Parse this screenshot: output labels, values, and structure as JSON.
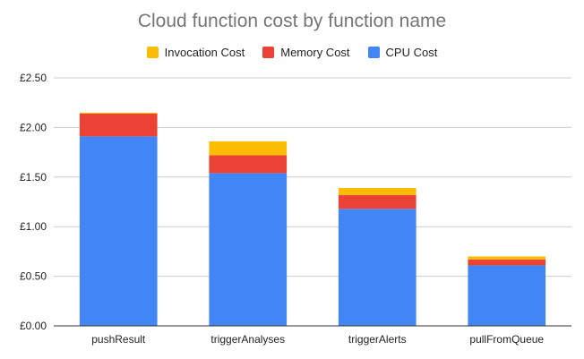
{
  "chart_data": {
    "type": "bar",
    "stacked": true,
    "title": "Cloud function cost by function name",
    "categories": [
      "pushResult",
      "triggerAnalyses",
      "triggerAlerts",
      "pullFromQueue"
    ],
    "series": [
      {
        "name": "CPU Cost",
        "color": "#4285f4",
        "values": [
          1.91,
          1.54,
          1.18,
          0.61
        ]
      },
      {
        "name": "Memory Cost",
        "color": "#ea4335",
        "values": [
          0.23,
          0.18,
          0.14,
          0.06
        ]
      },
      {
        "name": "Invocation Cost",
        "color": "#fbbc04",
        "values": [
          0.01,
          0.14,
          0.07,
          0.03
        ]
      }
    ],
    "legend_order": [
      "Invocation Cost",
      "Memory Cost",
      "CPU Cost"
    ],
    "legend_position": "top",
    "ylim": [
      0,
      2.5
    ],
    "yticks": [
      "£0.00",
      "£0.50",
      "£1.00",
      "£1.50",
      "£2.00",
      "£2.50"
    ],
    "ytick_values": [
      0,
      0.5,
      1.0,
      1.5,
      2.0,
      2.5
    ],
    "grid": true,
    "xlabel": "",
    "ylabel": ""
  }
}
